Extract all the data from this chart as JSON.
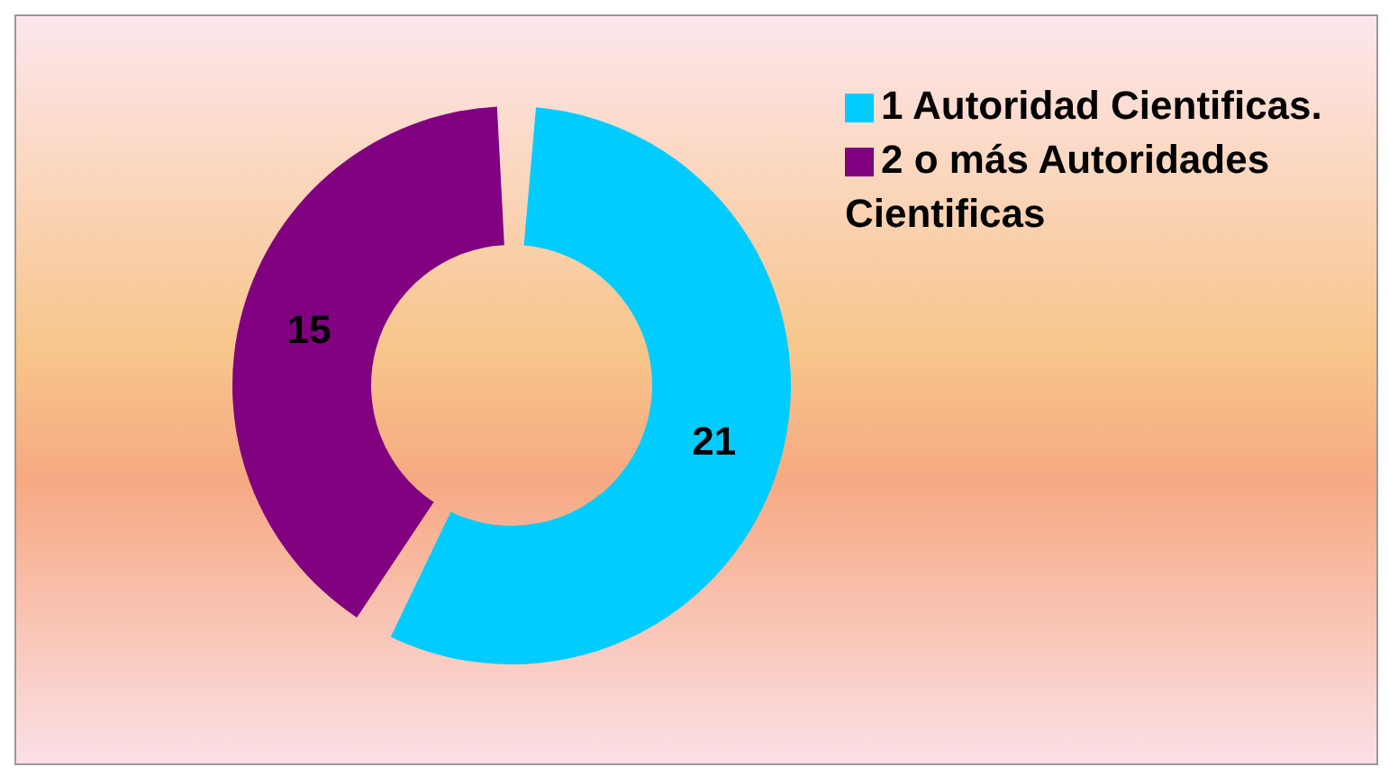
{
  "chart_data": {
    "type": "donut",
    "categories": [
      "1 Autoridad Cientificas.",
      "2 o más Autoridades Cientificas"
    ],
    "values": [
      21,
      15
    ],
    "colors": [
      "#00ccff",
      "#800080"
    ],
    "data_labels": true,
    "legend": "top right"
  }
}
